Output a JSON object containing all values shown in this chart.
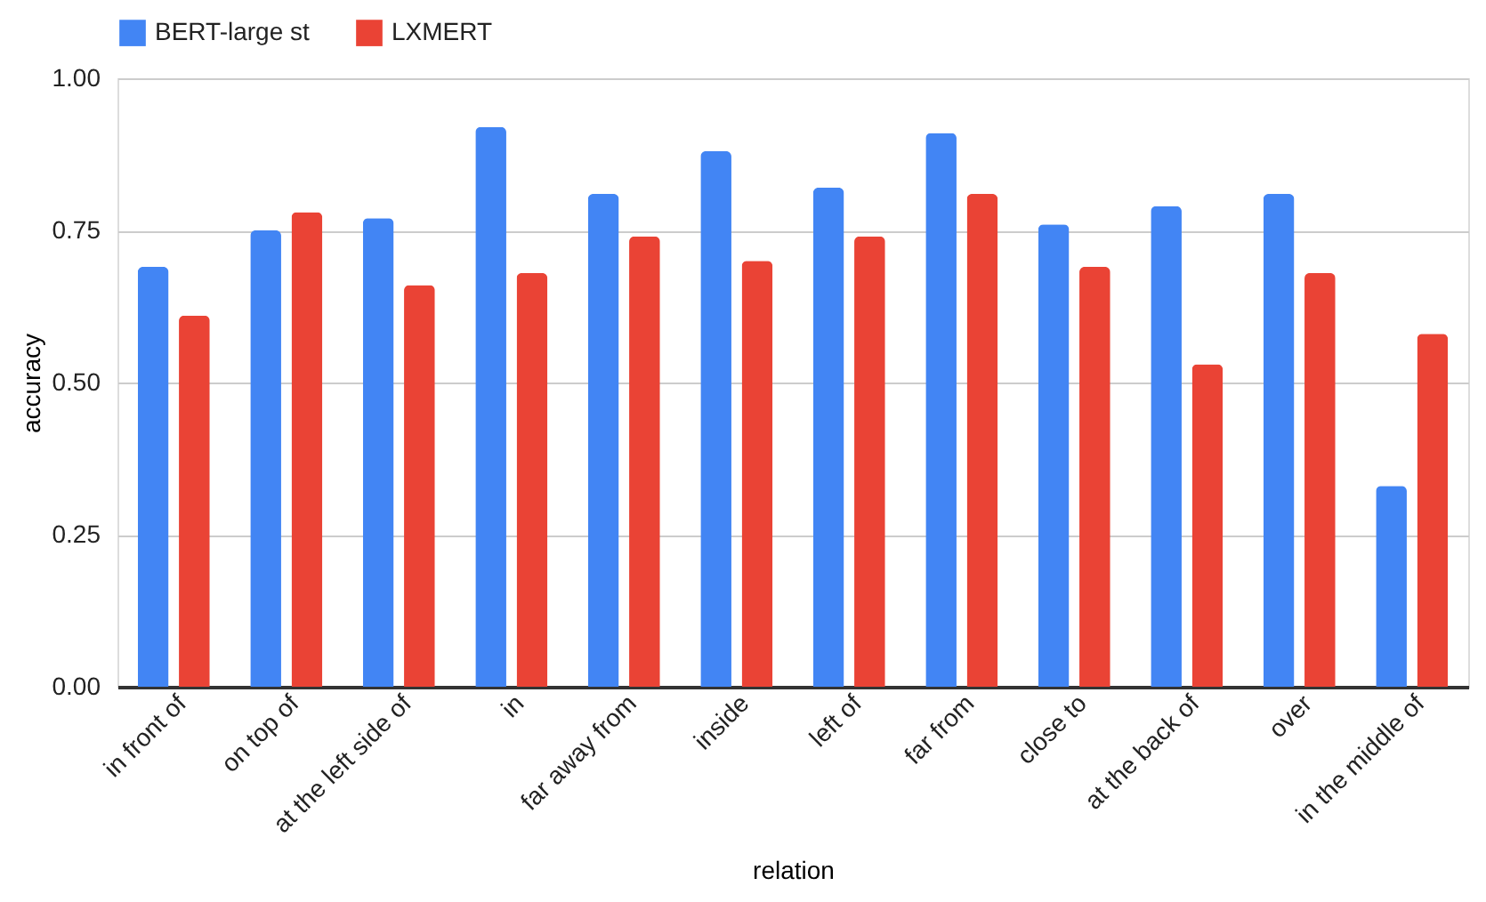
{
  "chart_data": {
    "type": "bar",
    "xlabel": "relation",
    "ylabel": "accuracy",
    "categories": [
      "in front of",
      "on top of",
      "at the left side of",
      "in",
      "far away from",
      "inside",
      "left of",
      "far from",
      "close to",
      "at the back of",
      "over",
      "in the middle of"
    ],
    "series": [
      {
        "name": "BERT-large st",
        "color": "#4285f4",
        "values": [
          0.69,
          0.75,
          0.77,
          0.92,
          0.81,
          0.88,
          0.82,
          0.91,
          0.76,
          0.79,
          0.81,
          0.33
        ]
      },
      {
        "name": "LXMERT",
        "color": "#ea4335",
        "values": [
          0.61,
          0.78,
          0.66,
          0.68,
          0.74,
          0.7,
          0.74,
          0.81,
          0.69,
          0.53,
          0.68,
          0.58
        ]
      }
    ],
    "ylim": [
      0,
      1
    ],
    "yticks": [
      {
        "value": 0,
        "label": "0.00"
      },
      {
        "value": 0.25,
        "label": "0.25"
      },
      {
        "value": 0.5,
        "label": "0.50"
      },
      {
        "value": 0.75,
        "label": "0.75"
      },
      {
        "value": 1,
        "label": "1.00"
      }
    ],
    "grid": "y",
    "legend": "top"
  }
}
